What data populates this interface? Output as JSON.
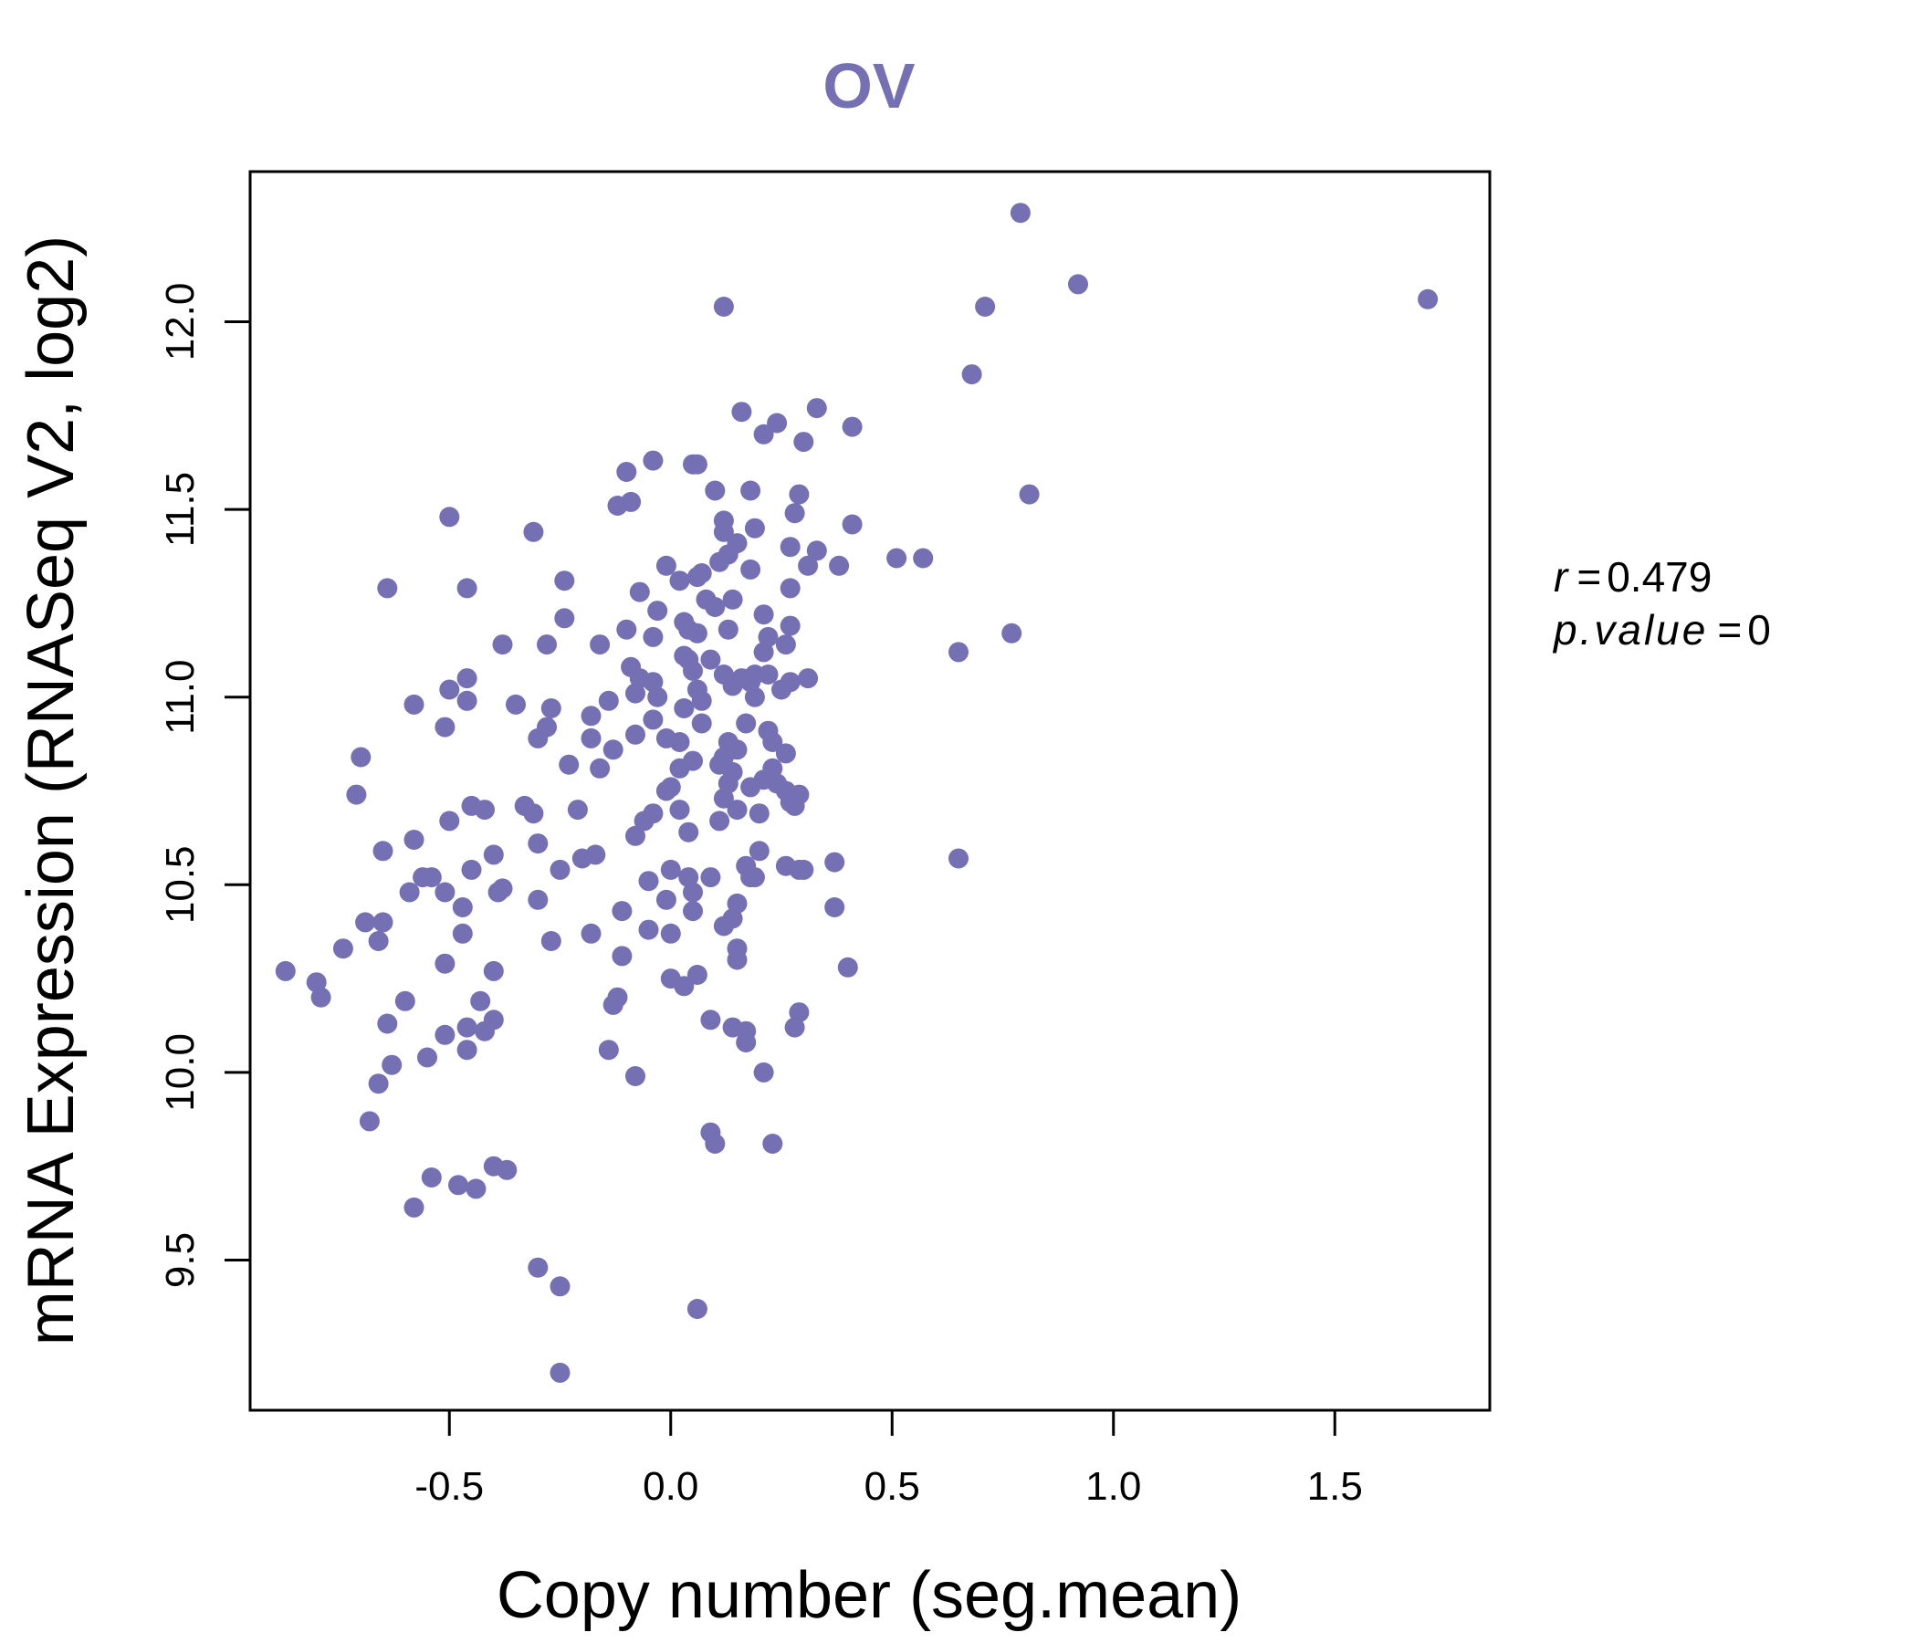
{
  "chart_data": {
    "type": "scatter",
    "title": "OV",
    "xlabel": "Copy number (seg.mean)",
    "ylabel": "mRNA Expression (RNASeq V2, log2)",
    "xlim": [
      -0.95,
      1.85
    ],
    "ylim": [
      9.1,
      12.4
    ],
    "x_ticks": [
      -0.5,
      0.0,
      0.5,
      1.0,
      1.5
    ],
    "x_tick_labels": [
      "-0.5",
      "0.0",
      "0.5",
      "1.0",
      "1.5"
    ],
    "y_ticks": [
      9.5,
      10.0,
      10.5,
      11.0,
      11.5,
      12.0
    ],
    "y_tick_labels": [
      "9.5",
      "10.0",
      "10.5",
      "11.0",
      "11.5",
      "12.0"
    ],
    "grid": false,
    "point_color": "#7570b3",
    "stats": {
      "r_symbol": "r",
      "r_value": "0.479",
      "p_symbol": "p.value",
      "p_value": "0"
    },
    "points": [
      [
        0.79,
        12.29
      ],
      [
        0.92,
        12.1
      ],
      [
        1.71,
        12.06
      ],
      [
        0.71,
        12.04
      ],
      [
        0.12,
        12.04
      ],
      [
        0.68,
        11.86
      ],
      [
        0.33,
        11.77
      ],
      [
        0.41,
        11.72
      ],
      [
        0.16,
        11.76
      ],
      [
        0.24,
        11.73
      ],
      [
        0.21,
        11.7
      ],
      [
        0.3,
        11.68
      ],
      [
        -0.04,
        11.63
      ],
      [
        0.05,
        11.62
      ],
      [
        0.06,
        11.62
      ],
      [
        -0.1,
        11.6
      ],
      [
        0.1,
        11.55
      ],
      [
        0.18,
        11.55
      ],
      [
        0.29,
        11.54
      ],
      [
        0.81,
        11.54
      ],
      [
        -0.12,
        11.51
      ],
      [
        -0.09,
        11.52
      ],
      [
        0.28,
        11.49
      ],
      [
        0.12,
        11.47
      ],
      [
        -0.5,
        11.48
      ],
      [
        0.41,
        11.46
      ],
      [
        0.19,
        11.45
      ],
      [
        0.12,
        11.44
      ],
      [
        -0.31,
        11.44
      ],
      [
        0.15,
        11.41
      ],
      [
        0.27,
        11.4
      ],
      [
        0.33,
        11.39
      ],
      [
        0.13,
        11.38
      ],
      [
        0.51,
        11.37
      ],
      [
        0.57,
        11.37
      ],
      [
        0.11,
        11.36
      ],
      [
        0.38,
        11.35
      ],
      [
        -0.01,
        11.35
      ],
      [
        0.31,
        11.35
      ],
      [
        0.07,
        11.33
      ],
      [
        0.18,
        11.34
      ],
      [
        0.06,
        11.32
      ],
      [
        0.02,
        11.31
      ],
      [
        -0.24,
        11.31
      ],
      [
        0.27,
        11.29
      ],
      [
        -0.46,
        11.29
      ],
      [
        -0.64,
        11.29
      ],
      [
        -0.07,
        11.28
      ],
      [
        0.08,
        11.26
      ],
      [
        0.14,
        11.26
      ],
      [
        0.1,
        11.24
      ],
      [
        -0.03,
        11.23
      ],
      [
        0.21,
        11.22
      ],
      [
        0.03,
        11.2
      ],
      [
        -0.24,
        11.21
      ],
      [
        0.27,
        11.19
      ],
      [
        0.04,
        11.18
      ],
      [
        0.13,
        11.18
      ],
      [
        -0.1,
        11.18
      ],
      [
        0.06,
        11.17
      ],
      [
        0.22,
        11.16
      ],
      [
        0.77,
        11.17
      ],
      [
        -0.04,
        11.16
      ],
      [
        0.26,
        11.14
      ],
      [
        -0.38,
        11.14
      ],
      [
        -0.28,
        11.14
      ],
      [
        -0.16,
        11.14
      ],
      [
        0.21,
        11.12
      ],
      [
        0.65,
        11.12
      ],
      [
        0.03,
        11.11
      ],
      [
        0.04,
        11.1
      ],
      [
        0.09,
        11.1
      ],
      [
        -0.09,
        11.08
      ],
      [
        0.05,
        11.07
      ],
      [
        0.12,
        11.06
      ],
      [
        0.19,
        11.06
      ],
      [
        0.22,
        11.06
      ],
      [
        -0.46,
        11.05
      ],
      [
        0.16,
        11.05
      ],
      [
        -0.07,
        11.05
      ],
      [
        0.31,
        11.05
      ],
      [
        0.18,
        11.04
      ],
      [
        -0.04,
        11.04
      ],
      [
        0.27,
        11.04
      ],
      [
        0.14,
        11.03
      ],
      [
        0.06,
        11.02
      ],
      [
        -0.5,
        11.02
      ],
      [
        0.25,
        11.02
      ],
      [
        -0.08,
        11.01
      ],
      [
        0.19,
        11.0
      ],
      [
        -0.03,
        11.0
      ],
      [
        0.07,
        10.99
      ],
      [
        -0.46,
        10.99
      ],
      [
        -0.14,
        10.99
      ],
      [
        -0.58,
        10.98
      ],
      [
        -0.35,
        10.98
      ],
      [
        0.03,
        10.97
      ],
      [
        -0.27,
        10.97
      ],
      [
        -0.18,
        10.95
      ],
      [
        -0.04,
        10.94
      ],
      [
        0.17,
        10.93
      ],
      [
        0.07,
        10.93
      ],
      [
        -0.28,
        10.92
      ],
      [
        -0.51,
        10.92
      ],
      [
        0.22,
        10.91
      ],
      [
        -0.08,
        10.9
      ],
      [
        -0.18,
        10.89
      ],
      [
        -0.3,
        10.89
      ],
      [
        -0.01,
        10.89
      ],
      [
        0.02,
        10.88
      ],
      [
        0.13,
        10.88
      ],
      [
        0.23,
        10.88
      ],
      [
        -0.13,
        10.86
      ],
      [
        0.15,
        10.86
      ],
      [
        -0.7,
        10.84
      ],
      [
        0.26,
        10.85
      ],
      [
        0.12,
        10.84
      ],
      [
        0.05,
        10.83
      ],
      [
        0.11,
        10.82
      ],
      [
        0.02,
        10.81
      ],
      [
        -0.23,
        10.82
      ],
      [
        0.23,
        10.81
      ],
      [
        -0.16,
        10.81
      ],
      [
        0.14,
        10.8
      ],
      [
        0.21,
        10.78
      ],
      [
        0.13,
        10.77
      ],
      [
        0.24,
        10.77
      ],
      [
        0.18,
        10.76
      ],
      [
        0.0,
        10.76
      ],
      [
        0.26,
        10.75
      ],
      [
        -0.01,
        10.75
      ],
      [
        0.29,
        10.74
      ],
      [
        -0.71,
        10.74
      ],
      [
        0.12,
        10.73
      ],
      [
        0.27,
        10.72
      ],
      [
        0.28,
        10.71
      ],
      [
        -0.45,
        10.71
      ],
      [
        -0.42,
        10.7
      ],
      [
        -0.33,
        10.71
      ],
      [
        0.15,
        10.7
      ],
      [
        0.2,
        10.69
      ],
      [
        0.02,
        10.7
      ],
      [
        -0.21,
        10.7
      ],
      [
        -0.31,
        10.69
      ],
      [
        -0.04,
        10.69
      ],
      [
        -0.06,
        10.67
      ],
      [
        0.11,
        10.67
      ],
      [
        -0.5,
        10.67
      ],
      [
        0.04,
        10.64
      ],
      [
        -0.08,
        10.63
      ],
      [
        -0.58,
        10.62
      ],
      [
        -0.3,
        10.61
      ],
      [
        0.2,
        10.59
      ],
      [
        -0.65,
        10.59
      ],
      [
        -0.4,
        10.58
      ],
      [
        -0.17,
        10.58
      ],
      [
        -0.2,
        10.57
      ],
      [
        0.37,
        10.56
      ],
      [
        0.65,
        10.57
      ],
      [
        0.26,
        10.55
      ],
      [
        0.17,
        10.55
      ],
      [
        -0.45,
        10.54
      ],
      [
        0.29,
        10.54
      ],
      [
        0.3,
        10.54
      ],
      [
        -0.25,
        10.54
      ],
      [
        0.0,
        10.54
      ],
      [
        0.04,
        10.52
      ],
      [
        0.09,
        10.52
      ],
      [
        0.18,
        10.52
      ],
      [
        -0.56,
        10.52
      ],
      [
        -0.54,
        10.52
      ],
      [
        0.19,
        10.52
      ],
      [
        -0.05,
        10.51
      ],
      [
        -0.38,
        10.49
      ],
      [
        -0.59,
        10.48
      ],
      [
        -0.51,
        10.48
      ],
      [
        -0.39,
        10.48
      ],
      [
        0.05,
        10.48
      ],
      [
        -0.3,
        10.46
      ],
      [
        -0.01,
        10.46
      ],
      [
        0.15,
        10.45
      ],
      [
        -0.47,
        10.44
      ],
      [
        0.37,
        10.44
      ],
      [
        -0.11,
        10.43
      ],
      [
        0.05,
        10.43
      ],
      [
        0.14,
        10.41
      ],
      [
        -0.69,
        10.4
      ],
      [
        -0.65,
        10.4
      ],
      [
        0.12,
        10.39
      ],
      [
        -0.05,
        10.38
      ],
      [
        -0.47,
        10.37
      ],
      [
        0.0,
        10.37
      ],
      [
        -0.18,
        10.37
      ],
      [
        -0.66,
        10.35
      ],
      [
        -0.27,
        10.35
      ],
      [
        -0.74,
        10.33
      ],
      [
        0.15,
        10.33
      ],
      [
        -0.11,
        10.31
      ],
      [
        0.15,
        10.3
      ],
      [
        -0.51,
        10.29
      ],
      [
        -0.87,
        10.27
      ],
      [
        0.4,
        10.28
      ],
      [
        -0.4,
        10.27
      ],
      [
        0.06,
        10.26
      ],
      [
        0.0,
        10.25
      ],
      [
        -0.8,
        10.24
      ],
      [
        0.03,
        10.23
      ],
      [
        -0.79,
        10.2
      ],
      [
        -0.12,
        10.2
      ],
      [
        -0.6,
        10.19
      ],
      [
        -0.43,
        10.19
      ],
      [
        -0.13,
        10.18
      ],
      [
        0.29,
        10.16
      ],
      [
        -0.4,
        10.14
      ],
      [
        -0.64,
        10.13
      ],
      [
        0.09,
        10.14
      ],
      [
        0.14,
        10.12
      ],
      [
        0.17,
        10.11
      ],
      [
        0.28,
        10.12
      ],
      [
        -0.46,
        10.12
      ],
      [
        -0.51,
        10.1
      ],
      [
        -0.42,
        10.11
      ],
      [
        -0.46,
        10.06
      ],
      [
        0.17,
        10.08
      ],
      [
        -0.14,
        10.06
      ],
      [
        -0.55,
        10.04
      ],
      [
        -0.63,
        10.02
      ],
      [
        0.21,
        10.0
      ],
      [
        -0.08,
        9.99
      ],
      [
        -0.66,
        9.97
      ],
      [
        -0.68,
        9.87
      ],
      [
        0.09,
        9.84
      ],
      [
        0.1,
        9.81
      ],
      [
        0.23,
        9.81
      ],
      [
        -0.4,
        9.75
      ],
      [
        -0.37,
        9.74
      ],
      [
        -0.54,
        9.72
      ],
      [
        -0.48,
        9.7
      ],
      [
        -0.44,
        9.69
      ],
      [
        -0.58,
        9.64
      ],
      [
        -0.3,
        9.48
      ],
      [
        -0.25,
        9.43
      ],
      [
        0.06,
        9.37
      ],
      [
        -0.25,
        9.2
      ]
    ]
  }
}
